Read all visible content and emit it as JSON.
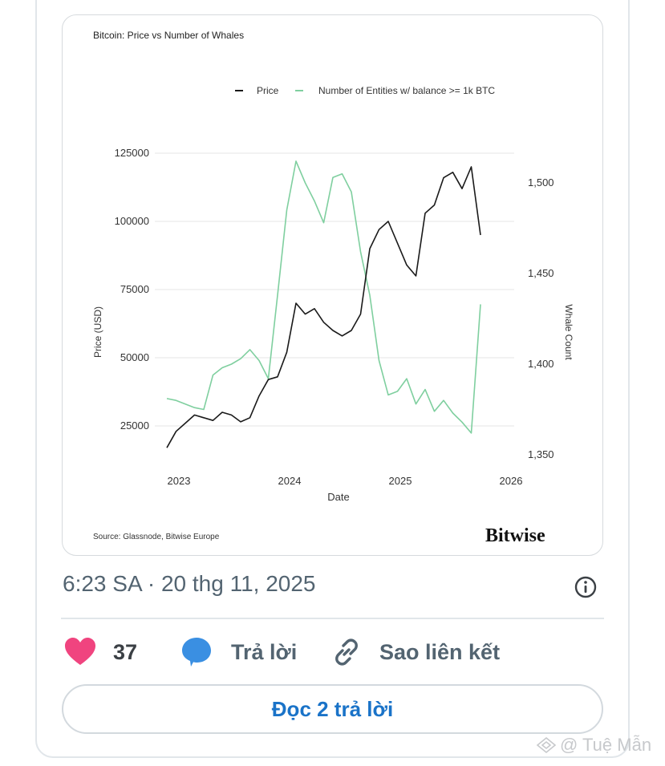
{
  "chart_data": {
    "type": "line",
    "title": "Bitcoin: Price vs Number of Whales",
    "xlabel": "Date",
    "ylabel": "Price (USD)",
    "y2label": "Whale Count",
    "x_ticks": [
      "2023",
      "2024",
      "2025",
      "2026"
    ],
    "y_ticks": [
      "25000",
      "50000",
      "75000",
      "100000",
      "125000"
    ],
    "y2_ticks": [
      "1,350",
      "1,400",
      "1,450",
      "1,500"
    ],
    "ylim": [
      15000,
      125000
    ],
    "y2lim": [
      1350,
      1520
    ],
    "legend_position": "top",
    "series": [
      {
        "name": "Price",
        "color": "#1a1a1a",
        "x": [
          "2023-01",
          "2023-02",
          "2023-03",
          "2023-04",
          "2023-05",
          "2023-06",
          "2023-07",
          "2023-08",
          "2023-09",
          "2023-10",
          "2023-11",
          "2023-12",
          "2024-01",
          "2024-02",
          "2024-03",
          "2024-04",
          "2024-05",
          "2024-06",
          "2024-07",
          "2024-08",
          "2024-09",
          "2024-10",
          "2024-11",
          "2024-12",
          "2025-01",
          "2025-02",
          "2025-03",
          "2025-04",
          "2025-05",
          "2025-06",
          "2025-07",
          "2025-08",
          "2025-09",
          "2025-10",
          "2025-11"
        ],
        "values": [
          17000,
          23000,
          26000,
          29000,
          28000,
          27000,
          30000,
          29000,
          26500,
          28000,
          36000,
          42000,
          43000,
          52000,
          70000,
          66000,
          68000,
          63000,
          60000,
          58000,
          60000,
          66000,
          90000,
          97000,
          100000,
          92000,
          84000,
          80000,
          103000,
          106000,
          116000,
          118000,
          112000,
          120000,
          95000
        ]
      },
      {
        "name": "Number of Entities w/ balance >= 1k BTC",
        "color": "#7fcf9f",
        "x": [
          "2023-01",
          "2023-02",
          "2023-03",
          "2023-04",
          "2023-05",
          "2023-06",
          "2023-07",
          "2023-08",
          "2023-09",
          "2023-10",
          "2023-11",
          "2023-12",
          "2024-01",
          "2024-02",
          "2024-03",
          "2024-04",
          "2024-05",
          "2024-06",
          "2024-07",
          "2024-08",
          "2024-09",
          "2024-10",
          "2024-11",
          "2024-12",
          "2025-01",
          "2025-02",
          "2025-03",
          "2025-04",
          "2025-05",
          "2025-06",
          "2025-07",
          "2025-08",
          "2025-09",
          "2025-10",
          "2025-11"
        ],
        "values": [
          1381,
          1380,
          1378,
          1376,
          1375,
          1394,
          1398,
          1400,
          1403,
          1408,
          1402,
          1392,
          1438,
          1485,
          1512,
          1500,
          1490,
          1478,
          1503,
          1505,
          1495,
          1462,
          1438,
          1402,
          1383,
          1385,
          1392,
          1378,
          1386,
          1374,
          1380,
          1373,
          1368,
          1362,
          1433
        ]
      }
    ],
    "source": "Source: Glassnode, Bitwise Europe",
    "brand": "Bitwise"
  },
  "tweet": {
    "timestamp": "6:23 SA · 20 thg 11, 2025",
    "likes_count": "37",
    "reply_label": "Trả lời",
    "copy_link_label": "Sao liên kết",
    "read_replies_label": "Đọc 2 trả lời"
  },
  "colors": {
    "like": "#f0447f",
    "reply": "#3a8fe2",
    "link_text": "#1a73c8"
  },
  "watermark": "@ Tuệ Mẫn"
}
